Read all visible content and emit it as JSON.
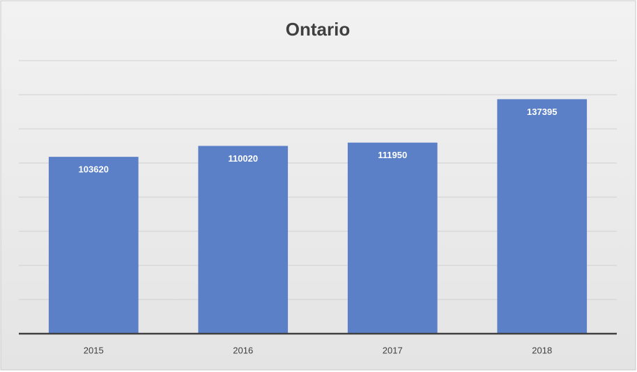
{
  "chart_data": {
    "type": "bar",
    "title": "Ontario",
    "categories": [
      "2015",
      "2016",
      "2017",
      "2018"
    ],
    "values": [
      103620,
      110020,
      111950,
      137395
    ],
    "color": "#5b80c8",
    "ylim": [
      0,
      160000
    ],
    "yticks": [
      0,
      20000,
      40000,
      60000,
      80000,
      100000,
      120000,
      140000,
      160000
    ],
    "grid": true,
    "show_tick_labels": false,
    "data_labels": true
  }
}
